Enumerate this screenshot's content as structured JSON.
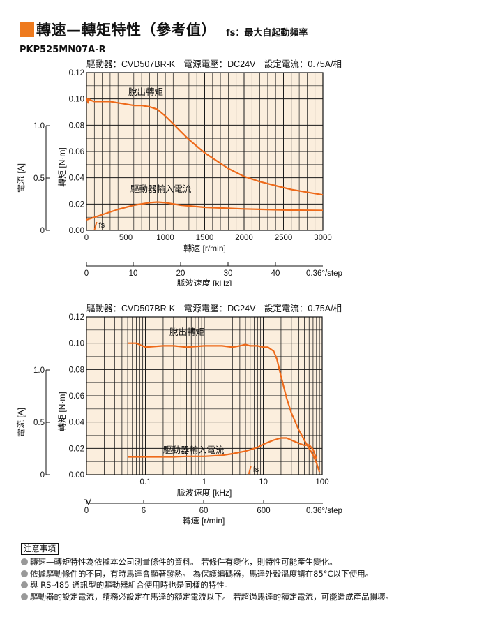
{
  "header": {
    "title": "轉速—轉矩特性（參考值）",
    "fs_note": "fs：最大自起動頻率",
    "model": "PKP525MN07A-R"
  },
  "colors": {
    "accent": "#ee7a1e",
    "curve": "#ee6a1a",
    "plot_bg": "#fbeedd",
    "grid": "#1a1a1a"
  },
  "notes": {
    "title": "注意事項",
    "items": [
      "轉速—轉矩特性為依據本公司測量條件的資料。 若條件有變化，則特性可能產生變化。",
      "依據驅動條件的不同，有時馬達會顯著發熱。 為保護編碼器，馬達外殼溫度請在85°C以下使用。",
      "與 RS-485 通訊型的驅動器組合使用時也是同樣的特性。",
      "驅動器的設定電流，請務必設定在馬達的額定電流以下。 若超過馬達的額定電流，可能造成產品損壞。"
    ]
  },
  "chart_data": [
    {
      "type": "line",
      "conditions": "驅動器：CVD507BR-K　電源電壓：DC24V　設定電流：0.75A/相",
      "ylabel": "轉矩 [N·m]",
      "ylabel2": "電流 [A]",
      "xlabel": "轉速 [r/min]",
      "xlabel2": "脈波速度 [kHz]",
      "x_scale": "linear",
      "xlim": [
        0,
        3000
      ],
      "ylim": [
        0,
        0.12
      ],
      "y2lim": [
        0,
        1.0
      ],
      "xticks": [
        0,
        500,
        1000,
        1500,
        2000,
        2500,
        3000
      ],
      "yticks": [
        0,
        0.02,
        0.04,
        0.06,
        0.08,
        0.1,
        0.12
      ],
      "y2ticks": [
        0,
        0.5,
        1.0
      ],
      "xticks2": [
        0,
        10,
        20,
        30,
        40
      ],
      "xtick2_suffix": "0.36°/step",
      "grid": true,
      "fs_label": "fs",
      "fs_x": 120,
      "series": [
        {
          "name": "脫出轉矩",
          "axis": "torque",
          "x": [
            6,
            10,
            20,
            30,
            50,
            100,
            200,
            300,
            400,
            500,
            600,
            700,
            800,
            850,
            900,
            1000,
            1100,
            1200,
            1300,
            1400,
            1500,
            1600,
            1800,
            2000,
            2200,
            2400,
            2600,
            2800,
            3000
          ],
          "y": [
            0.098,
            0.1,
            0.097,
            0.1,
            0.099,
            0.098,
            0.098,
            0.098,
            0.097,
            0.096,
            0.095,
            0.095,
            0.094,
            0.093,
            0.092,
            0.087,
            0.081,
            0.075,
            0.069,
            0.064,
            0.059,
            0.055,
            0.047,
            0.041,
            0.037,
            0.034,
            0.031,
            0.029,
            0.027
          ]
        },
        {
          "name": "驅動器輸入電流",
          "axis": "current",
          "x": [
            0,
            200,
            400,
            600,
            800,
            900,
            1000,
            1200,
            1500,
            2000,
            2500,
            3000
          ],
          "y": [
            0.1,
            0.15,
            0.2,
            0.24,
            0.265,
            0.27,
            0.265,
            0.24,
            0.22,
            0.205,
            0.195,
            0.19
          ]
        }
      ]
    },
    {
      "type": "line",
      "conditions": "驅動器：CVD507BR-K　電源電壓：DC24V　設定電流：0.75A/相",
      "ylabel": "轉矩 [N·m]",
      "ylabel2": "電流 [A]",
      "xlabel": "脈波速度 [kHz]",
      "xlabel2": "轉速 [r/min]",
      "x_scale": "log",
      "xlim": [
        0.01,
        100
      ],
      "ylim": [
        0,
        0.12
      ],
      "y2lim": [
        0,
        1.0
      ],
      "xticks": [
        0.1,
        1,
        10,
        100
      ],
      "yticks": [
        0,
        0.02,
        0.04,
        0.06,
        0.08,
        0.1,
        0.12
      ],
      "y2ticks": [
        0,
        0.5,
        1.0
      ],
      "xticks2": [
        0,
        6,
        60,
        600
      ],
      "xtick2_suffix": "0.36°/step",
      "grid": true,
      "fs_label": "fs",
      "fs_x": 6,
      "series": [
        {
          "name": "脫出轉矩",
          "axis": "torque",
          "x": [
            0.05,
            0.07,
            0.1,
            0.2,
            0.3,
            0.5,
            1,
            2,
            3,
            4,
            5,
            6,
            8,
            10,
            12,
            15,
            17,
            20,
            25,
            30,
            40,
            45,
            50,
            60,
            70,
            80,
            90
          ],
          "y": [
            0.1,
            0.1,
            0.097,
            0.098,
            0.098,
            0.097,
            0.098,
            0.098,
            0.097,
            0.098,
            0.099,
            0.098,
            0.098,
            0.097,
            0.097,
            0.094,
            0.088,
            0.075,
            0.058,
            0.047,
            0.034,
            0.03,
            0.026,
            0.02,
            0.015,
            0.009,
            0.002
          ]
        },
        {
          "name": "驅動器輸入電流",
          "axis": "current",
          "x": [
            0.05,
            0.1,
            0.3,
            0.5,
            1,
            2,
            3,
            5,
            8,
            10,
            15,
            20,
            25,
            30,
            40,
            50,
            60,
            70,
            80
          ],
          "y": [
            0.17,
            0.17,
            0.17,
            0.175,
            0.175,
            0.185,
            0.2,
            0.225,
            0.26,
            0.29,
            0.33,
            0.35,
            0.35,
            0.33,
            0.3,
            0.28,
            0.285,
            0.24,
            0.15
          ]
        }
      ]
    }
  ]
}
